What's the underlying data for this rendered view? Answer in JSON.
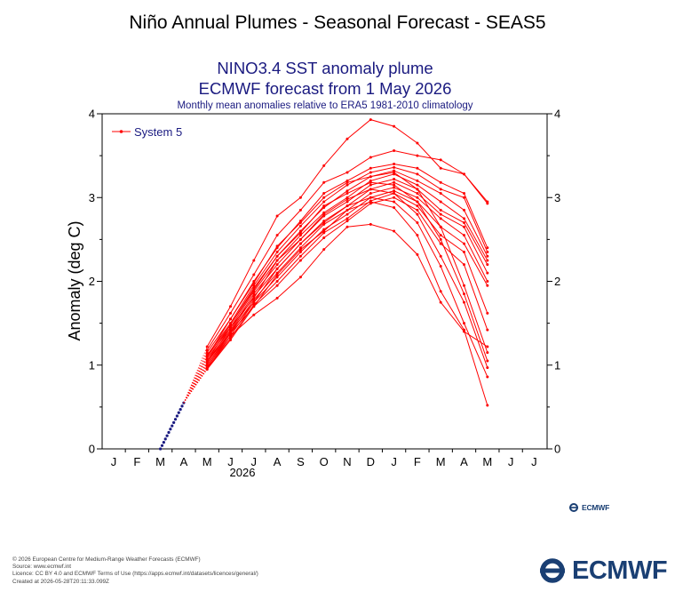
{
  "page": {
    "title": "Niño Annual Plumes - Seasonal Forecast - SEAS5"
  },
  "chart_data": {
    "type": "line",
    "title": "NINO3.4 SST anomaly plume",
    "subtitle": "ECMWF forecast from 1 May 2026",
    "subtitle2": "Monthly mean anomalies relative to ERA5 1981-2010 climatology",
    "ylabel": "Anomaly (deg C)",
    "xlabel": "",
    "year_label": "2026",
    "months": [
      "J",
      "F",
      "M",
      "A",
      "M",
      "J",
      "J",
      "A",
      "S",
      "O",
      "N",
      "D",
      "J",
      "F",
      "M",
      "A",
      "M",
      "J",
      "J"
    ],
    "ylim": [
      0,
      4
    ],
    "yticks": [
      0,
      1,
      2,
      3,
      4
    ],
    "grid": false,
    "legend": {
      "position": "top-left",
      "entries": [
        {
          "name": "System 5",
          "color": "#ff0000"
        }
      ]
    },
    "observed": {
      "color": "#1a1a80",
      "points": [
        [
          2.0,
          0.0
        ],
        [
          3.0,
          0.55
        ]
      ]
    },
    "forecast_start": [
      3.0,
      0.55
    ],
    "series_color": "#ff0000",
    "series": [
      {
        "values": [
          1.22,
          1.7,
          2.25,
          2.78,
          3.0,
          3.38,
          3.7,
          3.93,
          3.85,
          3.65,
          3.35,
          3.28,
          2.95
        ]
      },
      {
        "values": [
          1.18,
          1.62,
          2.08,
          2.55,
          2.85,
          3.18,
          3.3,
          3.48,
          3.56,
          3.5,
          3.45,
          3.28,
          2.93
        ]
      },
      {
        "values": [
          1.15,
          1.55,
          2.0,
          2.4,
          2.72,
          3.05,
          3.2,
          3.35,
          3.4,
          3.35,
          3.18,
          3.05,
          2.4
        ]
      },
      {
        "values": [
          1.12,
          1.5,
          1.95,
          2.35,
          2.66,
          2.95,
          3.15,
          3.3,
          3.36,
          3.28,
          3.1,
          3.0,
          2.35
        ]
      },
      {
        "values": [
          1.1,
          1.48,
          1.92,
          2.3,
          2.6,
          2.88,
          3.08,
          3.25,
          3.32,
          3.2,
          3.05,
          2.85,
          2.3
        ]
      },
      {
        "values": [
          1.08,
          1.45,
          1.88,
          2.25,
          2.55,
          2.82,
          3.0,
          3.2,
          3.28,
          3.15,
          2.95,
          2.75,
          2.25
        ]
      },
      {
        "values": [
          1.05,
          1.42,
          1.85,
          2.2,
          2.5,
          2.78,
          2.95,
          3.15,
          3.22,
          3.1,
          2.85,
          2.7,
          2.2
        ]
      },
      {
        "values": [
          1.03,
          1.4,
          1.82,
          2.15,
          2.45,
          2.72,
          2.9,
          3.1,
          3.18,
          3.05,
          2.8,
          2.65,
          2.1
        ]
      },
      {
        "values": [
          1.0,
          1.38,
          1.78,
          2.1,
          2.4,
          2.68,
          2.85,
          3.05,
          3.12,
          3.0,
          2.75,
          2.55,
          2.0
        ]
      },
      {
        "values": [
          0.98,
          1.35,
          1.75,
          2.05,
          2.35,
          2.62,
          2.8,
          3.0,
          3.08,
          2.95,
          2.65,
          2.45,
          1.95
        ]
      },
      {
        "values": [
          0.96,
          1.32,
          1.72,
          2.0,
          2.3,
          2.58,
          2.75,
          2.96,
          3.05,
          2.9,
          2.55,
          2.35,
          1.62
        ]
      },
      {
        "values": [
          0.95,
          1.3,
          1.7,
          1.95,
          2.25,
          2.52,
          2.72,
          2.93,
          3.0,
          2.85,
          2.45,
          2.2,
          1.42
        ]
      },
      {
        "values": [
          1.1,
          1.55,
          1.98,
          2.42,
          2.7,
          3.0,
          3.18,
          3.25,
          3.3,
          3.1,
          2.65,
          1.95,
          1.15
        ]
      },
      {
        "values": [
          1.05,
          1.48,
          1.9,
          2.3,
          2.58,
          2.9,
          3.05,
          3.18,
          3.15,
          2.95,
          2.5,
          1.85,
          1.05
        ]
      },
      {
        "values": [
          1.02,
          1.45,
          1.8,
          2.25,
          2.5,
          2.8,
          2.98,
          3.1,
          3.05,
          2.8,
          2.3,
          1.75,
          0.97
        ]
      },
      {
        "values": [
          1.0,
          1.4,
          1.75,
          2.15,
          2.45,
          2.7,
          2.9,
          3.0,
          2.95,
          2.7,
          2.18,
          1.5,
          0.86
        ]
      },
      {
        "values": [
          0.97,
          1.38,
          1.7,
          2.08,
          2.38,
          2.6,
          2.85,
          2.95,
          2.88,
          2.55,
          1.88,
          1.42,
          0.52
        ]
      },
      {
        "values": [
          0.95,
          1.35,
          1.6,
          1.8,
          2.05,
          2.38,
          2.65,
          2.68,
          2.6,
          2.32,
          1.75,
          1.4,
          1.22
        ]
      }
    ]
  },
  "footer": {
    "lines": [
      "© 2026 European Centre for Medium-Range Weather Forecasts (ECMWF)",
      "Source: www.ecmwf.int",
      "Licence: CC BY 4.0 and ECMWF Terms of Use (https://apps.ecmwf.int/datasets/licences/general/)",
      "Created at 2026-05-28T20:11:33.099Z"
    ]
  },
  "logo": {
    "text": "ECMWF",
    "color": "#1a3f73"
  }
}
